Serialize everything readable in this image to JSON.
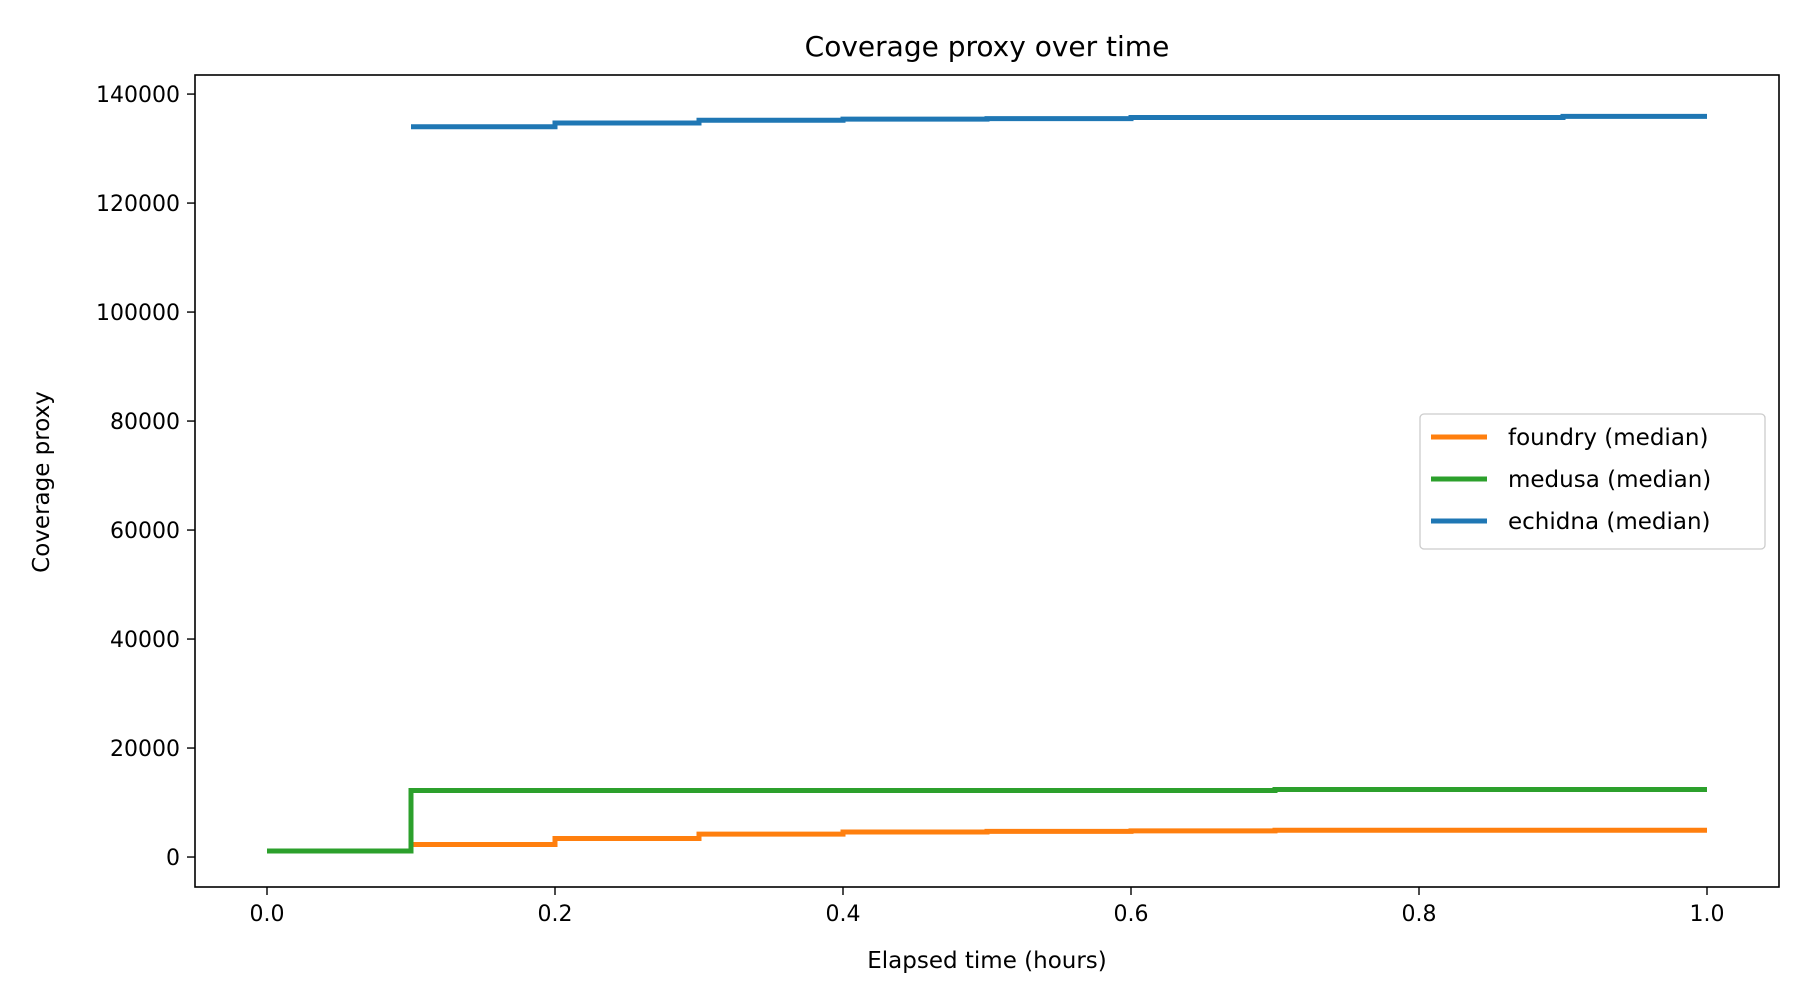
{
  "chart_data": {
    "type": "line",
    "step": "post",
    "title": "Coverage proxy over time",
    "xlabel": "Elapsed time (hours)",
    "ylabel": "Coverage proxy",
    "xlim": [
      -0.05,
      1.05
    ],
    "ylim": [
      -5500,
      143500
    ],
    "xticks": [
      0.0,
      0.2,
      0.4,
      0.6,
      0.8,
      1.0
    ],
    "xtick_labels": [
      "0.0",
      "0.2",
      "0.4",
      "0.6",
      "0.8",
      "1.0"
    ],
    "yticks": [
      0,
      20000,
      40000,
      60000,
      80000,
      100000,
      120000,
      140000
    ],
    "ytick_labels": [
      "0",
      "20000",
      "40000",
      "60000",
      "80000",
      "100000",
      "120000",
      "140000"
    ],
    "grid": false,
    "legend_position": "center-right",
    "series": [
      {
        "name": "foundry (median)",
        "color": "#ff7f0e",
        "x": [
          0.0,
          0.1,
          0.2,
          0.3,
          0.4,
          0.5,
          0.6,
          0.7,
          0.8,
          0.9,
          1.0
        ],
        "y": [
          1100,
          2300,
          3400,
          4200,
          4600,
          4700,
          4800,
          4900,
          4900,
          4900,
          4900
        ]
      },
      {
        "name": "medusa (median)",
        "color": "#2ca02c",
        "x": [
          0.0,
          0.1,
          0.2,
          0.3,
          0.4,
          0.5,
          0.6,
          0.7,
          0.8,
          0.9,
          1.0
        ],
        "y": [
          1100,
          12200,
          12200,
          12200,
          12200,
          12200,
          12200,
          12400,
          12400,
          12400,
          12400
        ]
      },
      {
        "name": "echidna (median)",
        "color": "#1f77b4",
        "x": [
          0.1,
          0.2,
          0.3,
          0.4,
          0.5,
          0.6,
          0.7,
          0.8,
          0.9,
          1.0
        ],
        "y": [
          134000,
          134700,
          135200,
          135400,
          135500,
          135700,
          135700,
          135700,
          135900,
          135900
        ]
      }
    ]
  }
}
